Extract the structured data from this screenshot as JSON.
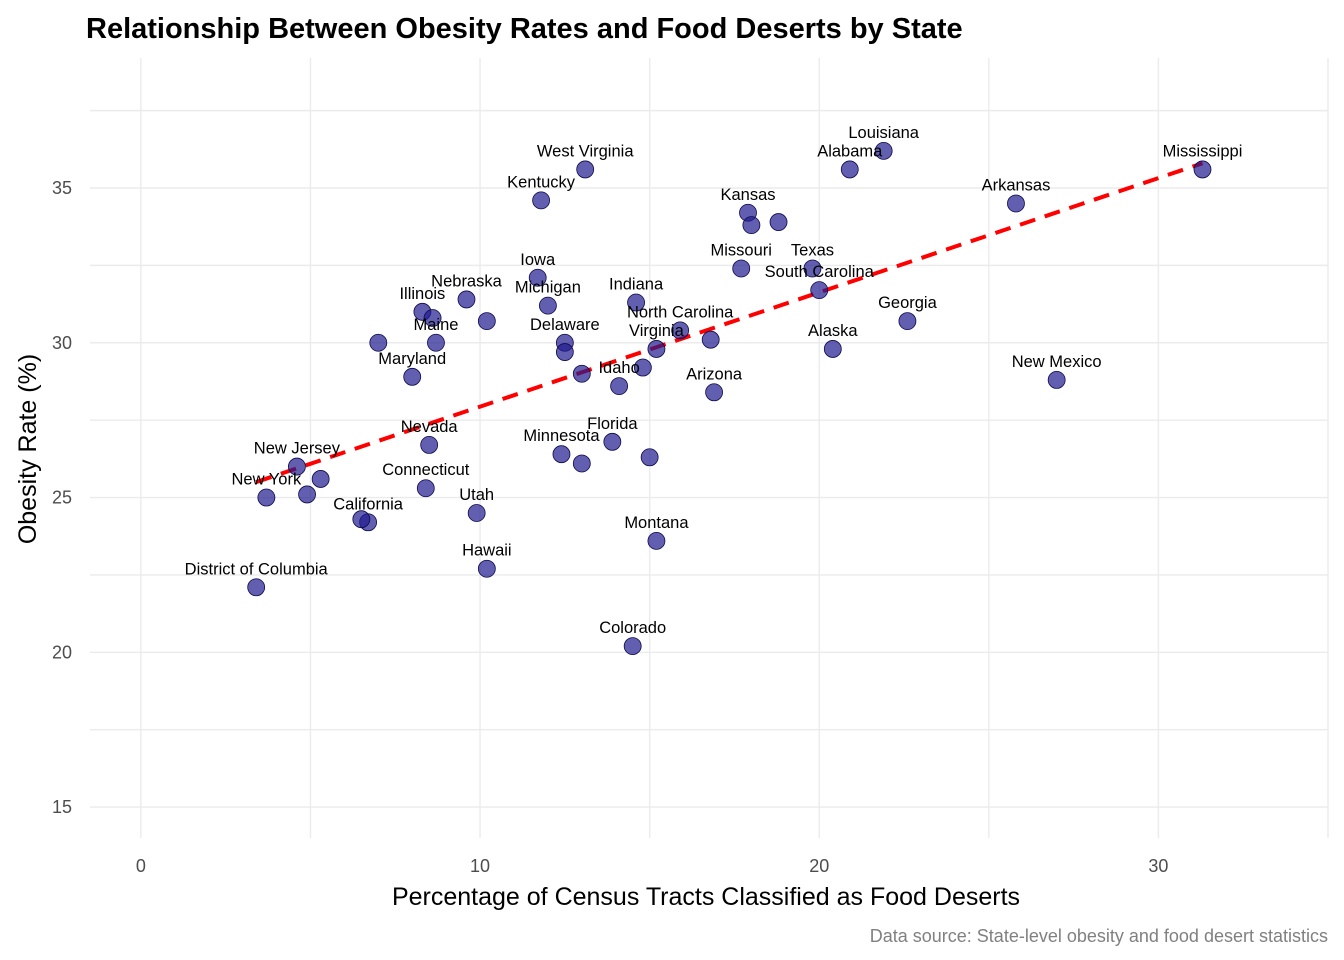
{
  "chart_data": {
    "type": "scatter",
    "title": "Relationship Between Obesity Rates and Food Deserts by State",
    "xlabel": "Percentage of Census Tracts Classified as Food Deserts",
    "ylabel": "Obesity Rate (%)",
    "caption": "Data source: State-level obesity and food desert statistics",
    "xlim": [
      -1.5,
      35
    ],
    "ylim": [
      14,
      39.2
    ],
    "x_ticks": [
      0,
      10,
      20,
      30
    ],
    "y_ticks": [
      15,
      20,
      25,
      30,
      35
    ],
    "grid": true,
    "legend": "none",
    "point_color": "#1f1a8f",
    "trend_color": "#ff0000",
    "trend_line": {
      "x": [
        3.4,
        31.3
      ],
      "y": [
        25.5,
        35.8
      ]
    },
    "points": [
      {
        "label": "Mississippi",
        "x": 31.3,
        "y": 35.6
      },
      {
        "label": "Louisiana",
        "x": 21.9,
        "y": 36.2
      },
      {
        "label": "Alabama",
        "x": 20.9,
        "y": 35.6
      },
      {
        "label": "Arkansas",
        "x": 25.8,
        "y": 34.5
      },
      {
        "label": "West Virginia",
        "x": 13.1,
        "y": 35.6
      },
      {
        "label": "Kentucky",
        "x": 11.8,
        "y": 34.6
      },
      {
        "label": "Kansas",
        "x": 17.9,
        "y": 34.2
      },
      {
        "label": "",
        "x": 18.0,
        "y": 33.8
      },
      {
        "label": "",
        "x": 18.8,
        "y": 33.9
      },
      {
        "label": "Missouri",
        "x": 17.7,
        "y": 32.4
      },
      {
        "label": "Texas",
        "x": 19.8,
        "y": 32.4
      },
      {
        "label": "South Carolina",
        "x": 20.0,
        "y": 31.7
      },
      {
        "label": "Georgia",
        "x": 22.6,
        "y": 30.7
      },
      {
        "label": "Alaska",
        "x": 20.4,
        "y": 29.8
      },
      {
        "label": "New Mexico",
        "x": 27.0,
        "y": 28.8
      },
      {
        "label": "Iowa",
        "x": 11.7,
        "y": 32.1
      },
      {
        "label": "Nebraska",
        "x": 9.6,
        "y": 31.4
      },
      {
        "label": "Michigan",
        "x": 12.0,
        "y": 31.2
      },
      {
        "label": "Indiana",
        "x": 14.6,
        "y": 31.3
      },
      {
        "label": "Illinois",
        "x": 8.3,
        "y": 31.0
      },
      {
        "label": "",
        "x": 8.6,
        "y": 30.8
      },
      {
        "label": "",
        "x": 10.2,
        "y": 30.7
      },
      {
        "label": "Maine",
        "x": 8.7,
        "y": 30.0
      },
      {
        "label": "",
        "x": 7.0,
        "y": 30.0
      },
      {
        "label": "North Carolina",
        "x": 15.9,
        "y": 30.4
      },
      {
        "label": "",
        "x": 16.8,
        "y": 30.1
      },
      {
        "label": "Delaware",
        "x": 12.5,
        "y": 30.0
      },
      {
        "label": "",
        "x": 12.5,
        "y": 29.7
      },
      {
        "label": "Virginia",
        "x": 15.2,
        "y": 29.8
      },
      {
        "label": "",
        "x": 14.8,
        "y": 29.2
      },
      {
        "label": "Idaho",
        "x": 14.1,
        "y": 28.6
      },
      {
        "label": "",
        "x": 13.0,
        "y": 29.0
      },
      {
        "label": "Maryland",
        "x": 8.0,
        "y": 28.9
      },
      {
        "label": "Arizona",
        "x": 16.9,
        "y": 28.4
      },
      {
        "label": "Nevada",
        "x": 8.5,
        "y": 26.7
      },
      {
        "label": "Florida",
        "x": 13.9,
        "y": 26.8
      },
      {
        "label": "Minnesota",
        "x": 12.4,
        "y": 26.4
      },
      {
        "label": "",
        "x": 13.0,
        "y": 26.1
      },
      {
        "label": "",
        "x": 15.0,
        "y": 26.3
      },
      {
        "label": "New Jersey",
        "x": 4.6,
        "y": 26.0
      },
      {
        "label": "",
        "x": 5.3,
        "y": 25.6
      },
      {
        "label": "New York",
        "x": 3.7,
        "y": 25.0
      },
      {
        "label": "",
        "x": 4.9,
        "y": 25.1
      },
      {
        "label": "Connecticut",
        "x": 8.4,
        "y": 25.3
      },
      {
        "label": "Utah",
        "x": 9.9,
        "y": 24.5
      },
      {
        "label": "California",
        "x": 6.7,
        "y": 24.2
      },
      {
        "label": "",
        "x": 6.5,
        "y": 24.3
      },
      {
        "label": "Montana",
        "x": 15.2,
        "y": 23.6
      },
      {
        "label": "Hawaii",
        "x": 10.2,
        "y": 22.7
      },
      {
        "label": "District of Columbia",
        "x": 3.4,
        "y": 22.1
      },
      {
        "label": "Colorado",
        "x": 14.5,
        "y": 20.2
      }
    ]
  }
}
